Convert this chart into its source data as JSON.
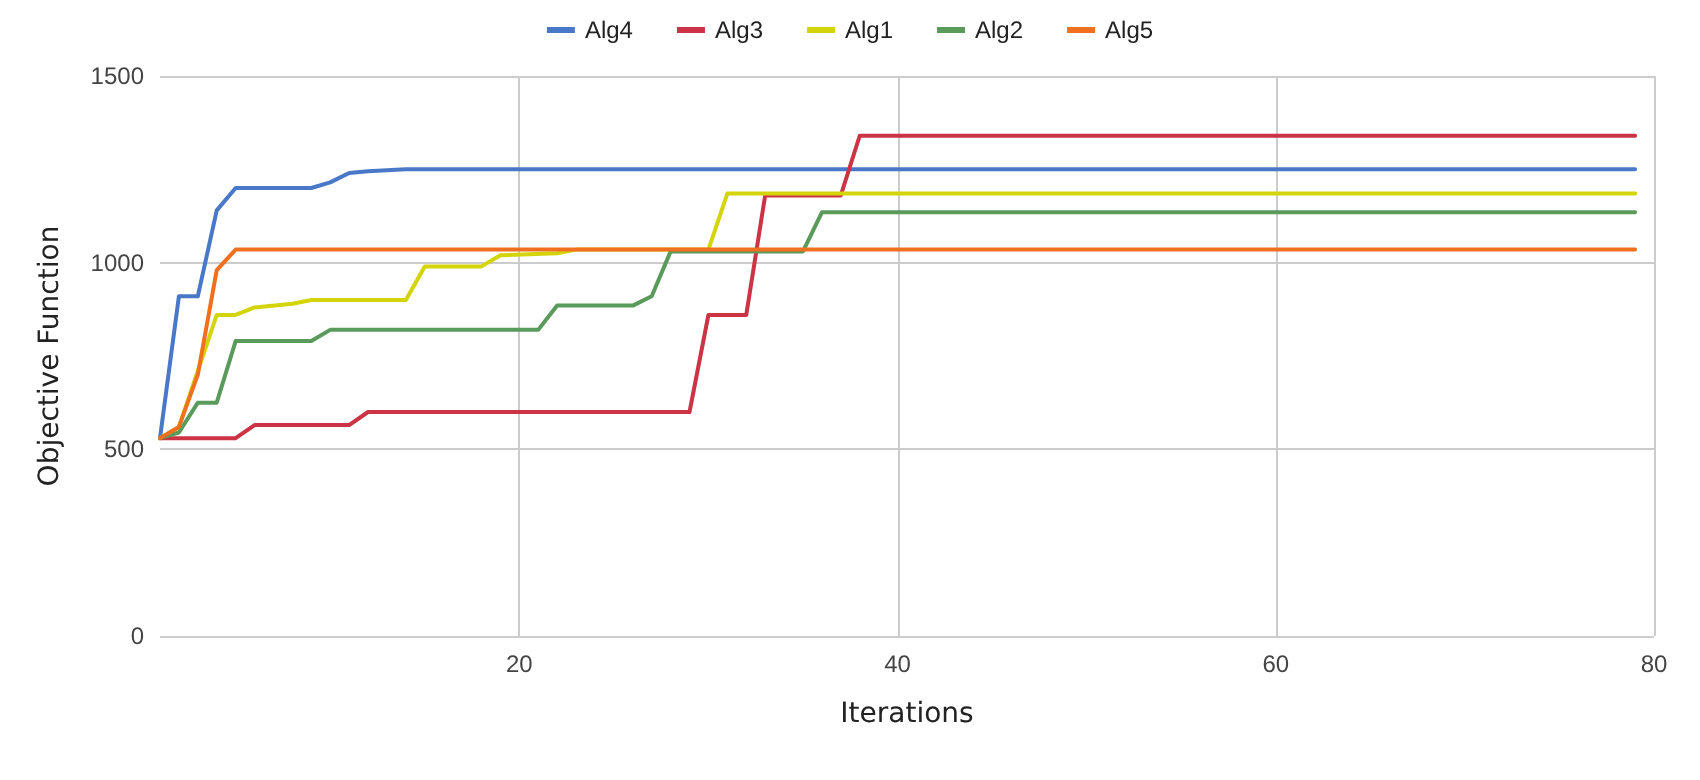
{
  "chart_data": {
    "type": "line",
    "xlabel": "Iterations",
    "ylabel": "Objective Function",
    "xlim": [
      1,
      80
    ],
    "xticks": [
      20,
      40,
      60,
      80
    ],
    "ylim": [
      0,
      1500
    ],
    "yticks": [
      0,
      500,
      1000,
      1500
    ],
    "grid": true,
    "legend": "top",
    "marker": "none",
    "line_style": "solid",
    "series": [
      {
        "name": "Alg4",
        "color": "#4a78c8",
        "x": [
          1,
          2,
          3,
          4,
          5,
          9,
          10,
          11,
          12,
          14,
          79
        ],
        "values": [
          530,
          910,
          910,
          1140,
          1200,
          1200,
          1215,
          1240,
          1245,
          1250,
          1250
        ]
      },
      {
        "name": "Alg3",
        "color": "#cc3344",
        "x": [
          1,
          5,
          6,
          11,
          12,
          29,
          30,
          32,
          33,
          37,
          38,
          79
        ],
        "values": [
          530,
          530,
          565,
          565,
          600,
          600,
          860,
          860,
          1180,
          1180,
          1340,
          1340
        ]
      },
      {
        "name": "Alg1",
        "color": "#d4d40a",
        "x": [
          1,
          2,
          4,
          5,
          6,
          8,
          9,
          14,
          15,
          18,
          19,
          22,
          23,
          30,
          31,
          79
        ],
        "values": [
          530,
          560,
          860,
          860,
          880,
          890,
          900,
          900,
          990,
          990,
          1020,
          1025,
          1035,
          1035,
          1185,
          1185
        ]
      },
      {
        "name": "Alg2",
        "color": "#5a9a5a",
        "x": [
          1,
          2,
          3,
          4,
          5,
          9,
          10,
          21,
          22,
          26,
          27,
          28,
          35,
          36,
          79
        ],
        "values": [
          530,
          545,
          625,
          625,
          790,
          790,
          820,
          820,
          885,
          885,
          910,
          1030,
          1030,
          1135,
          1135
        ]
      },
      {
        "name": "Alg5",
        "color": "#f07020",
        "x": [
          1,
          2,
          3,
          4,
          5,
          79
        ],
        "values": [
          530,
          560,
          700,
          980,
          1035,
          1035
        ]
      }
    ]
  }
}
